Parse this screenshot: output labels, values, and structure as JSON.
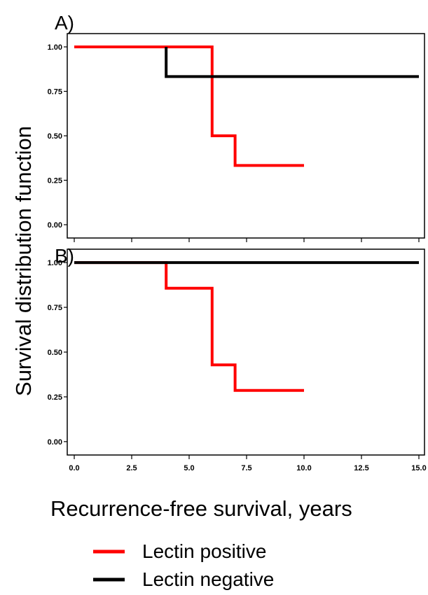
{
  "figure": {
    "ylabel": "Survival distribution function",
    "xlabel": "Recurrence-free survival, years"
  },
  "legend": [
    {
      "label": "Lectin positive",
      "color": "#ff0000"
    },
    {
      "label": "Lectin negative",
      "color": "#000000"
    }
  ],
  "chart_data": [
    {
      "type": "line",
      "panel_label": "A)",
      "xlim": [
        0,
        15
      ],
      "ylim": [
        0,
        1
      ],
      "y_ticks": [
        "0.00",
        "0.25",
        "0.50",
        "0.75",
        "1.00"
      ],
      "y_tick_values": [
        0,
        0.25,
        0.5,
        0.75,
        1.0
      ],
      "x_tick_values": [
        0,
        2.5,
        5,
        7.5,
        10,
        12.5,
        15
      ],
      "x_tick_labels_shown": false,
      "step": true,
      "series": [
        {
          "name": "Lectin positive",
          "color": "#ff0000",
          "x": [
            0,
            6,
            6,
            7,
            7,
            10
          ],
          "y": [
            1.0,
            1.0,
            0.5,
            0.5,
            0.333,
            0.333
          ]
        },
        {
          "name": "Lectin negative",
          "color": "#000000",
          "x": [
            4,
            4,
            15
          ],
          "y": [
            1.0,
            0.833,
            0.833
          ]
        }
      ]
    },
    {
      "type": "line",
      "panel_label": "B)",
      "xlim": [
        0,
        15
      ],
      "ylim": [
        0,
        1
      ],
      "y_ticks": [
        "0.00",
        "0.25",
        "0.50",
        "0.75",
        "1.00"
      ],
      "y_tick_values": [
        0,
        0.25,
        0.5,
        0.75,
        1.0
      ],
      "x_tick_values": [
        0,
        2.5,
        5,
        7.5,
        10,
        12.5,
        15
      ],
      "x_ticks": [
        "0.0",
        "2.5",
        "5.0",
        "7.5",
        "10.0",
        "12.5",
        "15.0"
      ],
      "x_tick_labels_shown": true,
      "step": true,
      "series": [
        {
          "name": "Lectin positive",
          "color": "#ff0000",
          "x": [
            0,
            4,
            4,
            6,
            6,
            7,
            7,
            10
          ],
          "y": [
            1.0,
            1.0,
            0.857,
            0.857,
            0.429,
            0.429,
            0.286,
            0.286
          ]
        },
        {
          "name": "Lectin negative",
          "color": "#000000",
          "x": [
            0,
            15
          ],
          "y": [
            1.0,
            1.0
          ]
        }
      ]
    }
  ]
}
